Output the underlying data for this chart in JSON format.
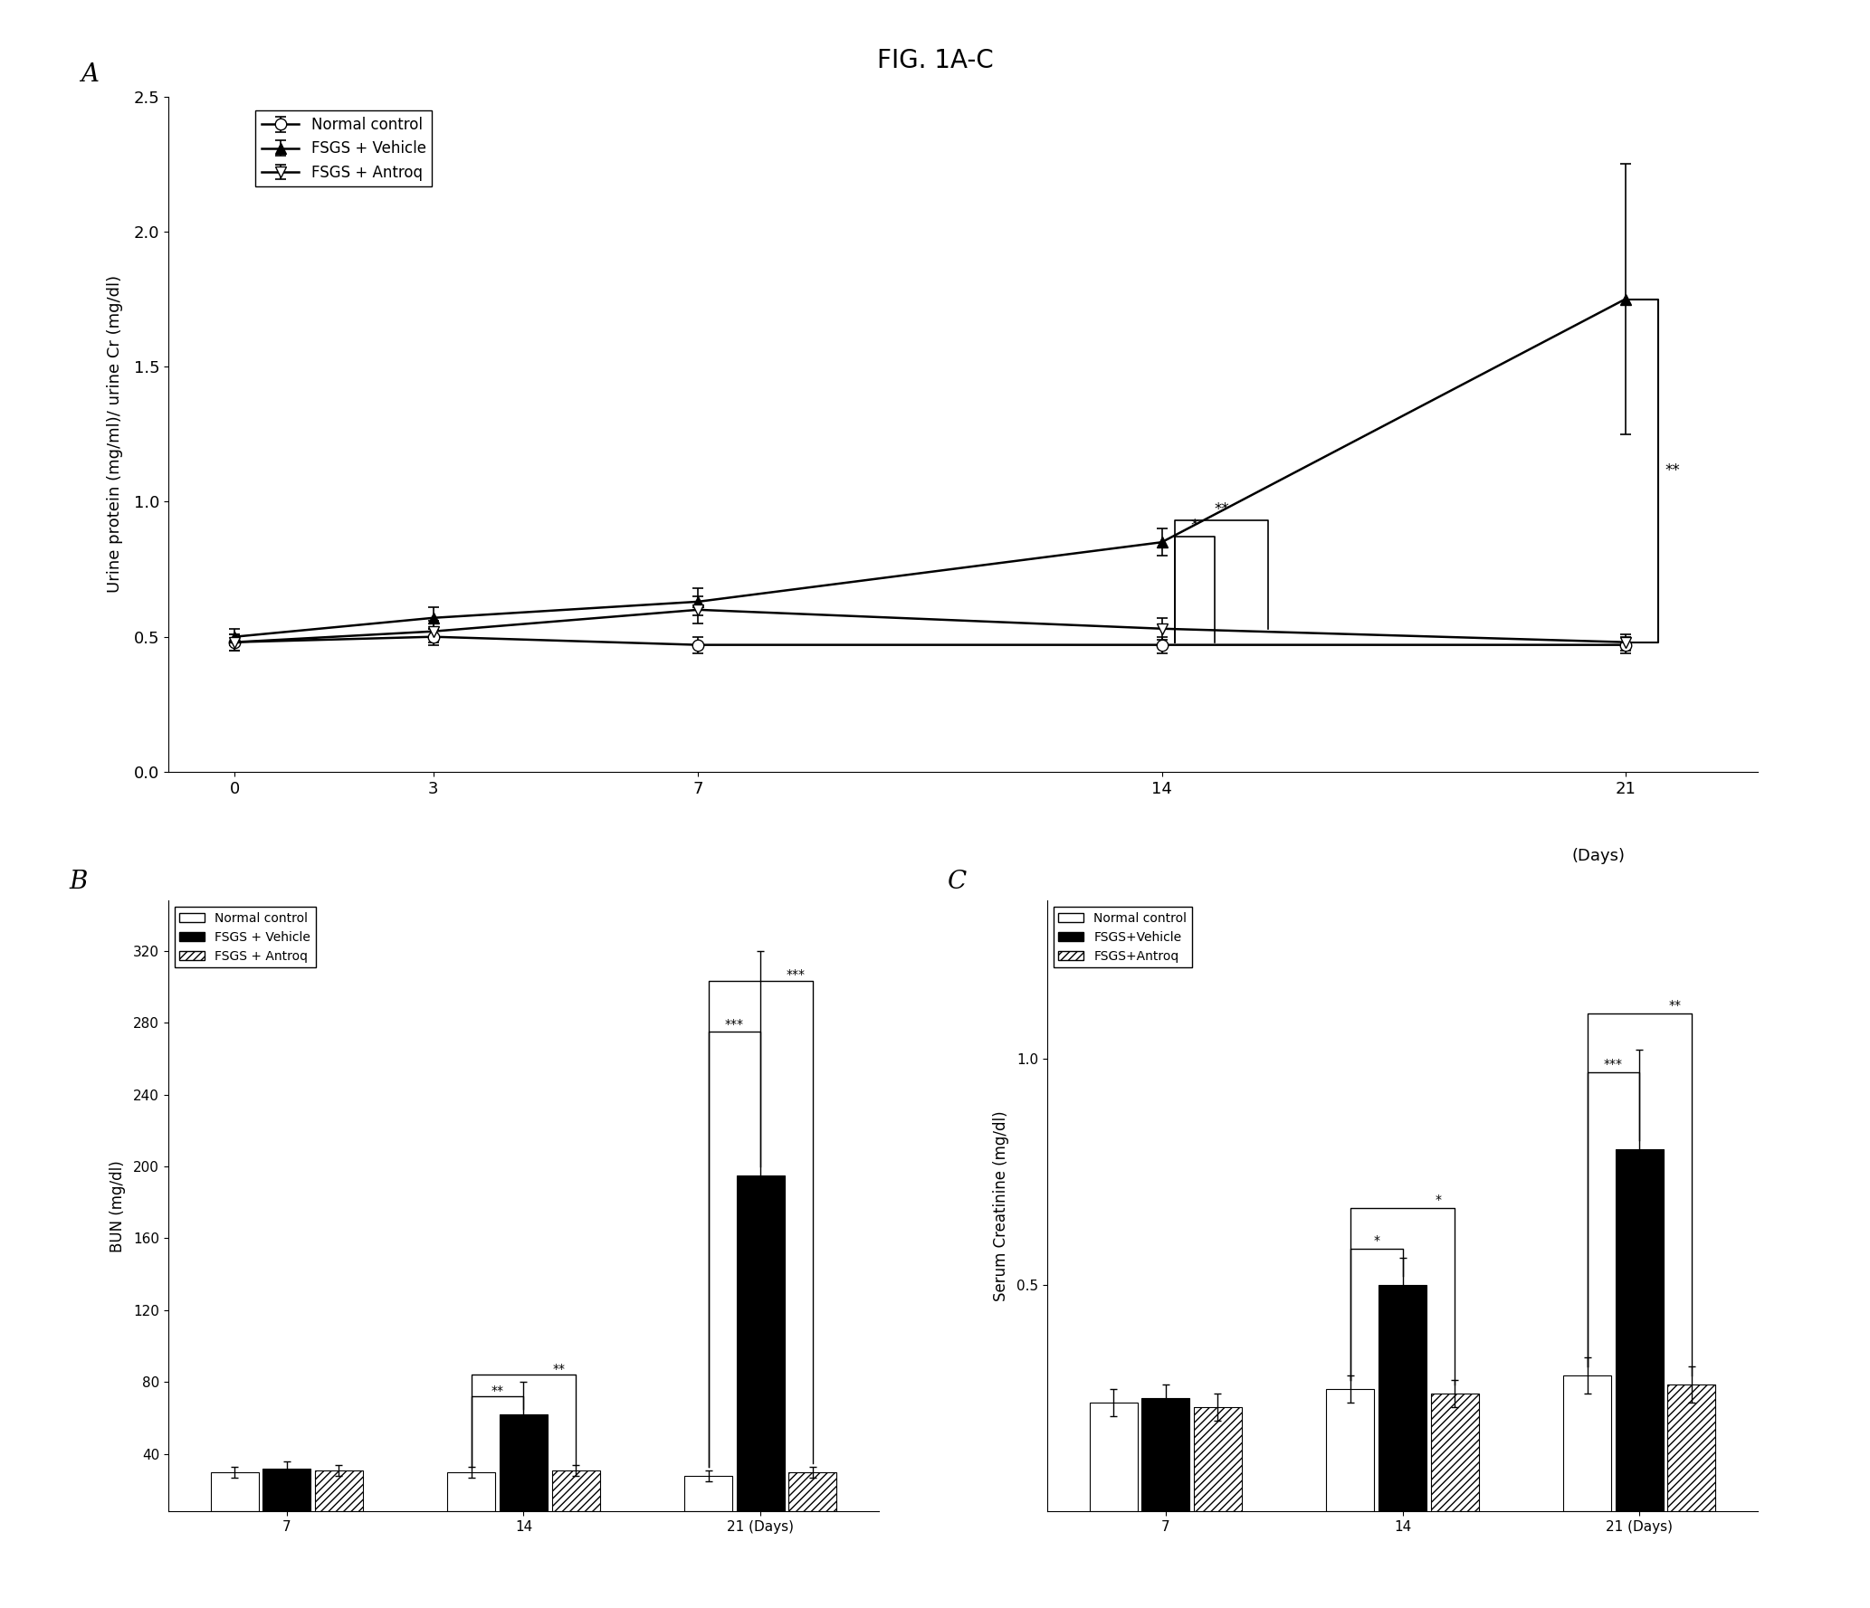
{
  "fig_title": "FIG. 1A-C",
  "panel_A": {
    "label": "A",
    "ylabel": "Urine protein (mg/ml)/ urine Cr (mg/dl)",
    "xlabel": "(Days)",
    "xlim": [
      -1,
      23
    ],
    "ylim": [
      0.0,
      2.5
    ],
    "yticks": [
      0.0,
      0.5,
      1.0,
      1.5,
      2.0,
      2.5
    ],
    "xticks": [
      0,
      3,
      7,
      14,
      21
    ],
    "normal_control": {
      "x": [
        0,
        3,
        7,
        14,
        21
      ],
      "y": [
        0.48,
        0.5,
        0.47,
        0.47,
        0.47
      ],
      "yerr": [
        0.03,
        0.03,
        0.03,
        0.03,
        0.03
      ],
      "label": "Normal control"
    },
    "fsgs_vehicle": {
      "x": [
        0,
        3,
        7,
        14,
        21
      ],
      "y": [
        0.5,
        0.57,
        0.63,
        0.85,
        1.75
      ],
      "yerr": [
        0.03,
        0.04,
        0.05,
        0.05,
        0.5
      ],
      "label": "FSGS + Vehicle"
    },
    "fsgs_antroq": {
      "x": [
        0,
        3,
        7,
        14,
        21
      ],
      "y": [
        0.48,
        0.52,
        0.6,
        0.53,
        0.48
      ],
      "yerr": [
        0.03,
        0.04,
        0.05,
        0.04,
        0.03
      ],
      "label": "FSGS + Antroq"
    }
  },
  "panel_B": {
    "label": "B",
    "ylabel": "BUN (mg/dl)",
    "ylim": [
      8,
      348
    ],
    "yticks": [
      40,
      80,
      120,
      160,
      200,
      240,
      280,
      320
    ],
    "xtick_labels": [
      "7",
      "14",
      "21 (Days)"
    ],
    "groups": [
      "Normal control",
      "FSGS + Vehicle",
      "FSGS + Antroq"
    ],
    "day7": [
      30,
      32,
      31
    ],
    "day7_err": [
      3,
      4,
      3
    ],
    "day14": [
      30,
      62,
      31
    ],
    "day14_err": [
      3,
      18,
      3
    ],
    "day21": [
      28,
      195,
      30
    ],
    "day21_err": [
      3,
      125,
      3
    ]
  },
  "panel_C": {
    "label": "C",
    "ylabel": "Serum Creatinine (mg/dl)",
    "ylim": [
      0.0,
      1.35
    ],
    "yticks": [
      0.5,
      1.0
    ],
    "ytick_labels": [
      "0.5",
      "1.0"
    ],
    "xtick_labels": [
      "7",
      "14",
      "21 (Days)"
    ],
    "groups": [
      "Normal control",
      "FSGS+Vehicle",
      "FSGS+Antroq"
    ],
    "day7": [
      0.24,
      0.25,
      0.23
    ],
    "day7_err": [
      0.03,
      0.03,
      0.03
    ],
    "day14": [
      0.27,
      0.5,
      0.26
    ],
    "day14_err": [
      0.03,
      0.06,
      0.03
    ],
    "day21": [
      0.3,
      0.8,
      0.28
    ],
    "day21_err": [
      0.04,
      0.22,
      0.04
    ]
  }
}
